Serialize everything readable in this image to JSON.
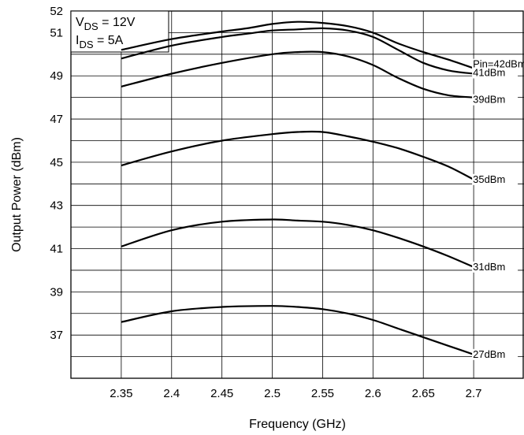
{
  "chart_data": {
    "type": "line",
    "xlabel": "Frequency (GHz)",
    "ylabel": "Output Power (dBm)",
    "xlim": [
      2.3,
      2.75
    ],
    "ylim": [
      35,
      52
    ],
    "x_ticks": [
      "2.35",
      "2.4",
      "2.45",
      "2.5",
      "2.55",
      "2.6",
      "2.65",
      "2.7"
    ],
    "y_ticks": [
      "37",
      "39",
      "41",
      "43",
      "45",
      "47",
      "49",
      "51",
      "52"
    ],
    "grid": true,
    "conditions": {
      "vds": {
        "main": "V",
        "sub": "DS",
        "rest": " = 12V"
      },
      "ids": {
        "main": "I",
        "sub": "DS",
        "rest": " = 5A"
      }
    },
    "series": [
      {
        "name": "Pin=42dBm",
        "x": [
          2.35,
          2.4,
          2.45,
          2.475,
          2.5,
          2.525,
          2.55,
          2.575,
          2.6,
          2.625,
          2.65,
          2.675,
          2.7
        ],
        "y": [
          50.2,
          50.7,
          51.05,
          51.2,
          51.4,
          51.5,
          51.45,
          51.3,
          51.0,
          50.5,
          50.1,
          49.75,
          49.35
        ]
      },
      {
        "name": "41dBm",
        "x": [
          2.35,
          2.4,
          2.45,
          2.475,
          2.5,
          2.525,
          2.55,
          2.575,
          2.6,
          2.625,
          2.65,
          2.675,
          2.7
        ],
        "y": [
          49.8,
          50.4,
          50.8,
          50.95,
          51.1,
          51.15,
          51.2,
          51.1,
          50.8,
          50.2,
          49.6,
          49.25,
          49.1
        ]
      },
      {
        "name": "39dBm",
        "x": [
          2.35,
          2.4,
          2.45,
          2.5,
          2.525,
          2.55,
          2.575,
          2.6,
          2.625,
          2.65,
          2.675,
          2.7
        ],
        "y": [
          48.5,
          49.1,
          49.6,
          50.0,
          50.1,
          50.1,
          49.9,
          49.5,
          48.9,
          48.4,
          48.1,
          48.0
        ]
      },
      {
        "name": "35dBm",
        "x": [
          2.35,
          2.4,
          2.45,
          2.5,
          2.525,
          2.55,
          2.575,
          2.6,
          2.625,
          2.65,
          2.675,
          2.7
        ],
        "y": [
          44.85,
          45.5,
          46.0,
          46.3,
          46.4,
          46.4,
          46.2,
          45.95,
          45.65,
          45.25,
          44.8,
          44.2
        ]
      },
      {
        "name": "31dBm",
        "x": [
          2.35,
          2.4,
          2.45,
          2.5,
          2.525,
          2.55,
          2.575,
          2.6,
          2.625,
          2.65,
          2.675,
          2.7
        ],
        "y": [
          41.1,
          41.85,
          42.25,
          42.35,
          42.3,
          42.25,
          42.1,
          41.85,
          41.5,
          41.1,
          40.65,
          40.15
        ]
      },
      {
        "name": "27dBm",
        "x": [
          2.35,
          2.4,
          2.45,
          2.5,
          2.525,
          2.55,
          2.575,
          2.6,
          2.625,
          2.65,
          2.675,
          2.7
        ],
        "y": [
          37.6,
          38.1,
          38.3,
          38.35,
          38.3,
          38.2,
          38.0,
          37.7,
          37.3,
          36.9,
          36.5,
          36.1
        ]
      }
    ]
  }
}
